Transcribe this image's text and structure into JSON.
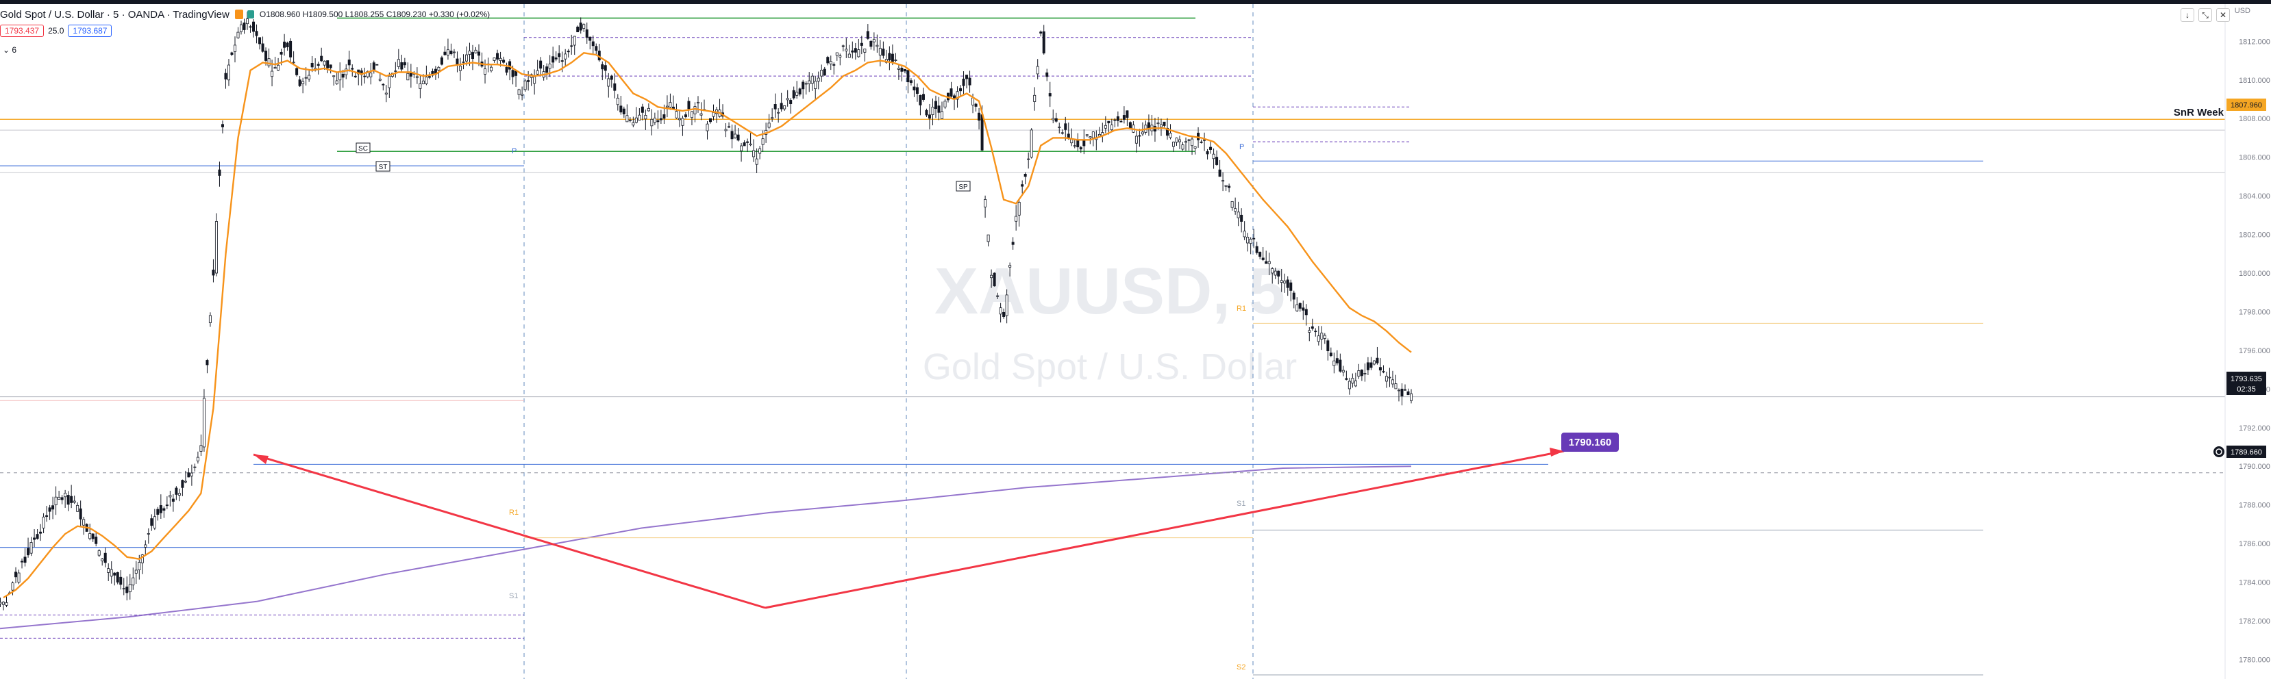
{
  "header": {
    "symbol": "Gold Spot / U.S. Dollar · 5 · OANDA · TradingView",
    "ohlc": "O1808.960 H1809.500 L1808.255 C1809.230 +0.330 (+0.02%)",
    "bid": "1793.437",
    "spread": "25.0",
    "ask": "1793.687",
    "indicator": "6",
    "currency": "USD"
  },
  "watermark": {
    "symbol": "XAUUSD, 5",
    "name": "Gold Spot / U.S. Dollar"
  },
  "labels": {
    "snr": "SnR Week",
    "target": "1790.160",
    "sc": "SC",
    "st": "ST",
    "sp": "SP",
    "p1": "P",
    "p2": "P",
    "r1": "R1",
    "s1": "S1",
    "s1b": "S1",
    "s2": "S2",
    "r1b": "R1"
  },
  "price_tags": {
    "snr_price": "1807.960",
    "last_price": "1793.635",
    "countdown": "02:35",
    "crosshair": "1789.660"
  },
  "colors": {
    "up": "#26a69a",
    "down": "#000000",
    "ma": "#f7931a",
    "long_ma": "#9575cd",
    "snr": "#f5a623",
    "target": "#673ab7",
    "arrow": "#f23645",
    "pivot": "#3f6fd8"
  },
  "chart_data": {
    "type": "line",
    "title": "Gold Spot / U.S. Dollar · 5 · OANDA",
    "ylabel": "USD",
    "ylim": [
      1779.2,
      1813.5
    ],
    "yticks": [
      1780,
      1782,
      1784,
      1786,
      1788,
      1790,
      1792,
      1794,
      1796,
      1798,
      1800,
      1802,
      1804,
      1806,
      1808,
      1810,
      1812
    ],
    "series": [
      {
        "values": [
          1782.8,
          1784.0,
          1785.5,
          1786.8,
          1788.0,
          1788.5,
          1787.8,
          1786.5,
          1785.5,
          1784.5,
          1783.5,
          1785.0,
          1786.8,
          1788.0,
          1788.5,
          1789.5,
          1791.0,
          1800.0,
          1810.0,
          1812.5,
          1813.0,
          1811.5,
          1810.5,
          1812.0,
          1809.8,
          1810.5,
          1811.0,
          1810.0,
          1810.6,
          1810.2,
          1810.8,
          1809.6,
          1810.9,
          1810.3,
          1809.8,
          1810.5,
          1811.5,
          1810.9,
          1811.4,
          1810.8,
          1811.0,
          1810.5,
          1809.5,
          1810.3,
          1810.6,
          1811.0,
          1811.8,
          1812.6,
          1811.5,
          1810.2,
          1808.5,
          1807.8,
          1808.4,
          1808.0,
          1808.6,
          1808.2,
          1808.8,
          1808.0,
          1808.3,
          1807.0,
          1806.8,
          1806.2,
          1808.0,
          1808.5,
          1809.2,
          1809.8,
          1810.2,
          1810.8,
          1811.5,
          1811.2,
          1812.0,
          1811.6,
          1811.0,
          1810.5,
          1809.2,
          1808.2,
          1808.6,
          1809.0,
          1810.1,
          1808.2,
          1800.0,
          1797.8,
          1803.0,
          1806.0,
          1812.5,
          1808.0,
          1807.2,
          1806.5,
          1807.0,
          1807.5,
          1808.1,
          1807.8,
          1807.2,
          1807.6,
          1807.5,
          1806.8,
          1806.6,
          1806.9,
          1806.0,
          1804.5,
          1803.0,
          1801.8,
          1800.6,
          1800.1,
          1799.5,
          1798.2,
          1797.0,
          1796.5,
          1795.5,
          1794.3,
          1794.8,
          1795.6,
          1794.6,
          1794.0,
          1793.6
        ]
      },
      {
        "values": [
          1783.2,
          1783.6,
          1784.2,
          1785.0,
          1785.8,
          1786.5,
          1786.9,
          1786.8,
          1786.4,
          1785.9,
          1785.3,
          1785.2,
          1785.6,
          1786.3,
          1787.0,
          1787.7,
          1788.6,
          1793.0,
          1801.0,
          1807.0,
          1810.5,
          1810.9,
          1810.8,
          1811.0,
          1810.6,
          1810.5,
          1810.6,
          1810.4,
          1810.5,
          1810.3,
          1810.5,
          1810.2,
          1810.4,
          1810.4,
          1810.2,
          1810.3,
          1810.7,
          1810.8,
          1810.9,
          1810.8,
          1810.8,
          1810.7,
          1810.3,
          1810.2,
          1810.3,
          1810.5,
          1810.9,
          1811.4,
          1811.3,
          1810.9,
          1810.1,
          1809.3,
          1809.0,
          1808.6,
          1808.5,
          1808.4,
          1808.5,
          1808.4,
          1808.3,
          1807.9,
          1807.5,
          1807.1,
          1807.3,
          1807.6,
          1808.1,
          1808.6,
          1809.1,
          1809.6,
          1810.2,
          1810.5,
          1810.9,
          1811.0,
          1810.9,
          1810.7,
          1810.2,
          1809.5,
          1809.2,
          1809.0,
          1809.3,
          1808.9,
          1806.5,
          1803.8,
          1803.6,
          1804.5,
          1806.6,
          1807.0,
          1807.0,
          1806.9,
          1806.9,
          1807.1,
          1807.4,
          1807.5,
          1807.4,
          1807.5,
          1807.5,
          1807.3,
          1807.1,
          1807.0,
          1806.8,
          1806.2,
          1805.4,
          1804.6,
          1803.8,
          1803.1,
          1802.4,
          1801.5,
          1800.6,
          1799.8,
          1799.0,
          1798.2,
          1797.8,
          1797.5,
          1797.0,
          1796.4,
          1795.9
        ]
      },
      {
        "values": [
          1781.6,
          1782.2,
          1783.0,
          1784.4,
          1785.6,
          1786.8,
          1787.6,
          1788.2,
          1788.9,
          1789.4,
          1789.9,
          1790.0
        ]
      }
    ],
    "levels": [
      {
        "name": "SnR Week",
        "value": 1807.96
      },
      {
        "name": "P",
        "value": 1805.8
      },
      {
        "name": "S1",
        "value": 1786.7
      },
      {
        "name": "S2",
        "value": 1779.2
      }
    ],
    "annotation": "1790.160",
    "grid": false,
    "legend": "none"
  }
}
